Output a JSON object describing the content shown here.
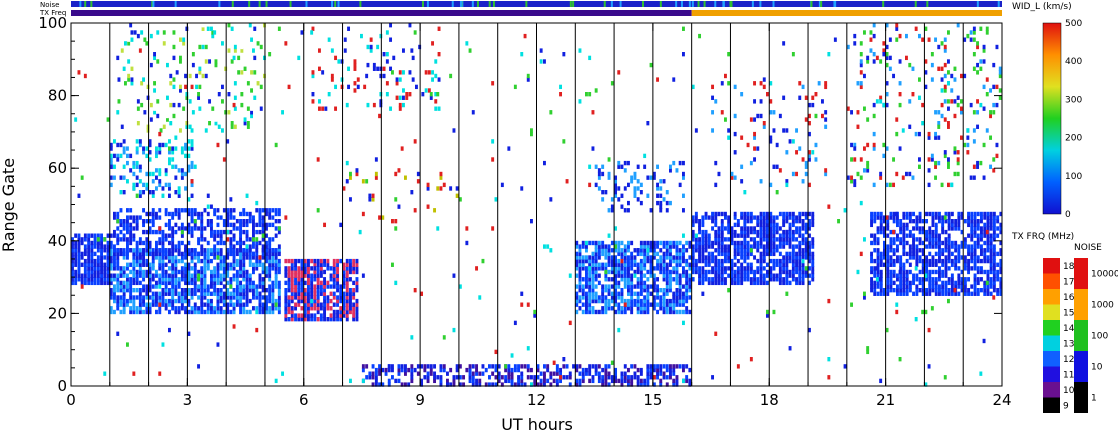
{
  "chart_data": {
    "type": "scatter",
    "xlabel": "UT hours",
    "ylabel": "Range Gate",
    "xlim": [
      0,
      24
    ],
    "ylim": [
      0,
      100
    ],
    "x_ticks": [
      "0",
      "3",
      "6",
      "9",
      "12",
      "15",
      "18",
      "21",
      "24"
    ],
    "y_ticks": [
      "0",
      "20",
      "40",
      "60",
      "80",
      "100"
    ],
    "vertical_lines_ut": [
      1,
      2,
      3,
      4,
      5,
      6,
      7,
      8,
      9,
      10,
      11,
      12,
      13,
      14,
      15,
      16,
      17,
      18,
      19,
      20,
      21,
      22,
      23
    ],
    "top_strips": {
      "noise_label": "Noise",
      "txfreq_label": "TX Freq",
      "txfreq_segments": [
        {
          "from": 0,
          "to": 16,
          "color": "#3a0a8c"
        },
        {
          "from": 16,
          "to": 24,
          "color": "#f0a000"
        }
      ]
    },
    "regions": [
      {
        "x0": 0.0,
        "x1": 1.0,
        "y0": 28,
        "y1": 42,
        "density": 0.85,
        "colors": [
          "#1020e0",
          "#0840ff"
        ]
      },
      {
        "x0": 1.0,
        "x1": 5.4,
        "y0": 20,
        "y1": 38,
        "density": 0.75,
        "colors": [
          "#1020e0",
          "#0840ff",
          "#20a0ff"
        ]
      },
      {
        "x0": 1.0,
        "x1": 5.4,
        "y0": 36,
        "y1": 49,
        "density": 0.55,
        "colors": [
          "#1020e0",
          "#0840ff"
        ]
      },
      {
        "x0": 1.0,
        "x1": 3.2,
        "y0": 52,
        "y1": 68,
        "density": 0.3,
        "colors": [
          "#1020e0",
          "#20a0ff",
          "#00e0e0"
        ]
      },
      {
        "x0": 1.2,
        "x1": 5.0,
        "y0": 70,
        "y1": 100,
        "density": 0.12,
        "colors": [
          "#1020e0",
          "#00e0e0",
          "#30d030",
          "#c0e040",
          "#ffffff"
        ]
      },
      {
        "x0": 5.5,
        "x1": 7.4,
        "y0": 18,
        "y1": 35,
        "density": 0.8,
        "colors": [
          "#1020e0",
          "#0840ff",
          "#e03060"
        ]
      },
      {
        "x0": 6.2,
        "x1": 9.5,
        "y0": 76,
        "y1": 100,
        "density": 0.1,
        "colors": [
          "#1020e0",
          "#00e0e0",
          "#e02020"
        ]
      },
      {
        "x0": 7.0,
        "x1": 10.0,
        "y0": 45,
        "y1": 60,
        "density": 0.08,
        "colors": [
          "#1020e0",
          "#c0c000",
          "#e02020"
        ]
      },
      {
        "x0": 7.5,
        "x1": 16.0,
        "y0": 0,
        "y1": 6,
        "density": 0.55,
        "colors": [
          "#1020e0",
          "#4010a0",
          "#0840ff"
        ]
      },
      {
        "x0": 13.0,
        "x1": 16.0,
        "y0": 20,
        "y1": 40,
        "density": 0.75,
        "colors": [
          "#1020e0",
          "#0840ff",
          "#20a0ff"
        ]
      },
      {
        "x0": 13.5,
        "x1": 15.8,
        "y0": 48,
        "y1": 62,
        "density": 0.22,
        "colors": [
          "#1020e0",
          "#20a0ff"
        ]
      },
      {
        "x0": 16.0,
        "x1": 19.2,
        "y0": 28,
        "y1": 48,
        "density": 0.75,
        "colors": [
          "#1020e0",
          "#0840ff"
        ]
      },
      {
        "x0": 16.5,
        "x1": 19.5,
        "y0": 55,
        "y1": 85,
        "density": 0.08,
        "colors": [
          "#1020e0",
          "#20a0ff",
          "#e02020"
        ]
      },
      {
        "x0": 20.6,
        "x1": 24.0,
        "y0": 25,
        "y1": 48,
        "density": 0.7,
        "colors": [
          "#1020e0",
          "#0840ff"
        ]
      },
      {
        "x0": 20.0,
        "x1": 24.0,
        "y0": 55,
        "y1": 100,
        "density": 0.12,
        "colors": [
          "#1020e0",
          "#e02020",
          "#20a0ff",
          "#30d030"
        ]
      },
      {
        "x0": 0.0,
        "x1": 24.0,
        "y0": 0,
        "y1": 100,
        "density": 0.012,
        "colors": [
          "#e02020",
          "#1020e0",
          "#00e0e0",
          "#30d030"
        ]
      }
    ],
    "colorbars": [
      {
        "title": "WID_L (km/s)",
        "ticks": [
          "0",
          "100",
          "200",
          "300",
          "400",
          "500"
        ],
        "gradient": [
          "#1010d0",
          "#0060ff",
          "#00d0e0",
          "#20d020",
          "#e0e020",
          "#ff9000",
          "#e01010"
        ]
      },
      {
        "title": "TX FRQ (MHz)",
        "ticks": [
          "9",
          "10",
          "11",
          "12",
          "13",
          "14",
          "15",
          "16",
          "17",
          "18"
        ],
        "blocks": [
          "#000000",
          "#6a1090",
          "#2010e0",
          "#1060ff",
          "#00d0e0",
          "#20d020",
          "#e0e020",
          "#ffa000",
          "#ff5000",
          "#e01010"
        ]
      },
      {
        "title": "NOISE",
        "ticks": [
          "1",
          "10",
          "100",
          "1000",
          "10000"
        ],
        "blocks": [
          "#000000",
          "#1010e0",
          "#20c020",
          "#ffa000",
          "#e01010"
        ]
      }
    ]
  }
}
